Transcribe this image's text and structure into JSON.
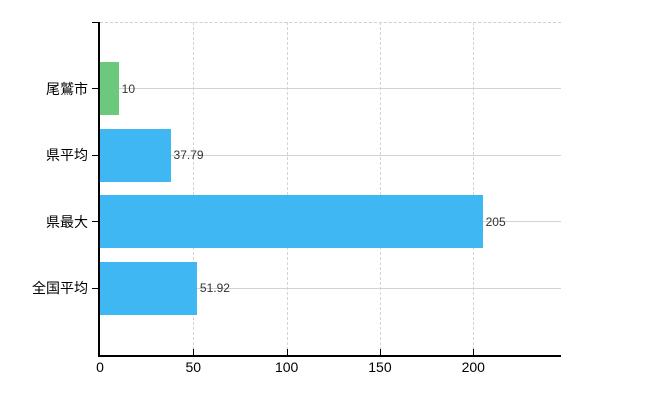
{
  "chart_data": {
    "type": "bar",
    "orientation": "horizontal",
    "title": "",
    "xlabel": "",
    "ylabel": "",
    "categories": [
      "尾鷲市",
      "県平均",
      "県最大",
      "全国平均"
    ],
    "values": [
      10,
      37.79,
      205,
      51.92
    ],
    "value_labels": [
      "10",
      "37.79",
      "205",
      "51.92"
    ],
    "bar_colors": [
      "#6cc87c",
      "#3eb7f2",
      "#3eb7f2",
      "#3eb7f2"
    ],
    "x_ticks": [
      0,
      50,
      100,
      150,
      200
    ],
    "x_tick_labels": [
      "0",
      "50",
      "100",
      "150",
      "200"
    ],
    "xlim": [
      0,
      247
    ],
    "grid": true,
    "legend": false
  },
  "colors": {
    "bar_blue": "#3eb7f2",
    "bar_green": "#6cc87c",
    "axis": "#000000",
    "vertical_grid": "#d7d0dc",
    "horizontal_grid": "#c9d8c9",
    "background": "#ffffff"
  }
}
